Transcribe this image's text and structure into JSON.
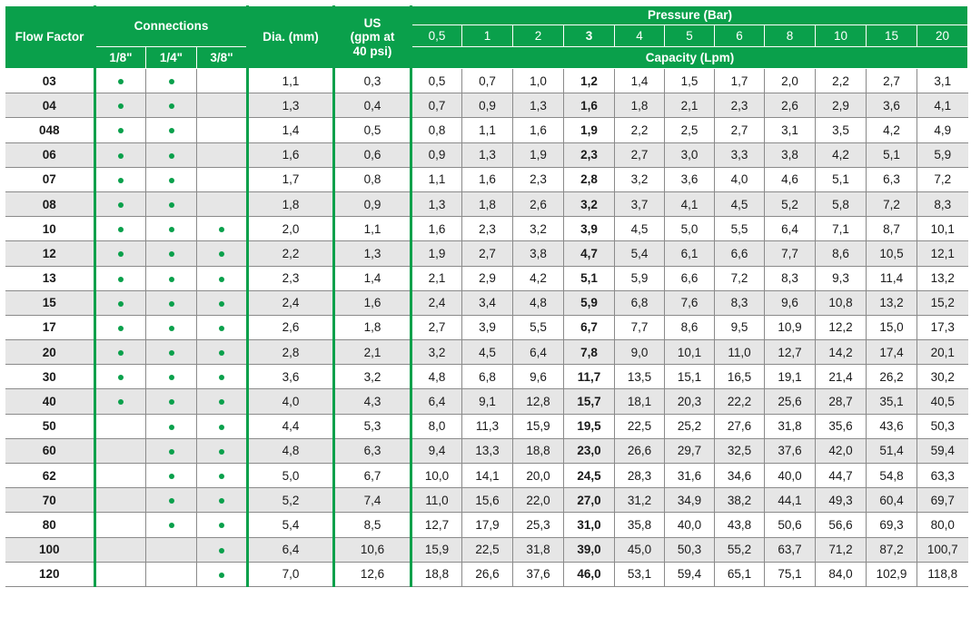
{
  "header": {
    "flow_factor": "Flow Factor",
    "connections": "Connections",
    "connection_sizes": [
      "1/8\"",
      "1/4\"",
      "3/8\""
    ],
    "dia": "Dia. (mm)",
    "us": "US (gpm at 40 psi)",
    "pressure": "Pressure (Bar)",
    "pressures": [
      "0,5",
      "1",
      "2",
      "3",
      "4",
      "5",
      "6",
      "8",
      "10",
      "15",
      "20"
    ],
    "capacity": "Capacity (Lpm)"
  },
  "colors": {
    "accent": "#0aa04b",
    "stripe": "#e6e6e6"
  },
  "rows": [
    {
      "ff": "03",
      "c": [
        1,
        1,
        0
      ],
      "dia": "1,1",
      "us": "0,3",
      "cap": [
        "0,5",
        "0,7",
        "1,0",
        "1,2",
        "1,4",
        "1,5",
        "1,7",
        "2,0",
        "2,2",
        "2,7",
        "3,1"
      ]
    },
    {
      "ff": "04",
      "c": [
        1,
        1,
        0
      ],
      "dia": "1,3",
      "us": "0,4",
      "cap": [
        "0,7",
        "0,9",
        "1,3",
        "1,6",
        "1,8",
        "2,1",
        "2,3",
        "2,6",
        "2,9",
        "3,6",
        "4,1"
      ]
    },
    {
      "ff": "048",
      "c": [
        1,
        1,
        0
      ],
      "dia": "1,4",
      "us": "0,5",
      "cap": [
        "0,8",
        "1,1",
        "1,6",
        "1,9",
        "2,2",
        "2,5",
        "2,7",
        "3,1",
        "3,5",
        "4,2",
        "4,9"
      ]
    },
    {
      "ff": "06",
      "c": [
        1,
        1,
        0
      ],
      "dia": "1,6",
      "us": "0,6",
      "cap": [
        "0,9",
        "1,3",
        "1,9",
        "2,3",
        "2,7",
        "3,0",
        "3,3",
        "3,8",
        "4,2",
        "5,1",
        "5,9"
      ]
    },
    {
      "ff": "07",
      "c": [
        1,
        1,
        0
      ],
      "dia": "1,7",
      "us": "0,8",
      "cap": [
        "1,1",
        "1,6",
        "2,3",
        "2,8",
        "3,2",
        "3,6",
        "4,0",
        "4,6",
        "5,1",
        "6,3",
        "7,2"
      ]
    },
    {
      "ff": "08",
      "c": [
        1,
        1,
        0
      ],
      "dia": "1,8",
      "us": "0,9",
      "cap": [
        "1,3",
        "1,8",
        "2,6",
        "3,2",
        "3,7",
        "4,1",
        "4,5",
        "5,2",
        "5,8",
        "7,2",
        "8,3"
      ]
    },
    {
      "ff": "10",
      "c": [
        1,
        1,
        1
      ],
      "dia": "2,0",
      "us": "1,1",
      "cap": [
        "1,6",
        "2,3",
        "3,2",
        "3,9",
        "4,5",
        "5,0",
        "5,5",
        "6,4",
        "7,1",
        "8,7",
        "10,1"
      ]
    },
    {
      "ff": "12",
      "c": [
        1,
        1,
        1
      ],
      "dia": "2,2",
      "us": "1,3",
      "cap": [
        "1,9",
        "2,7",
        "3,8",
        "4,7",
        "5,4",
        "6,1",
        "6,6",
        "7,7",
        "8,6",
        "10,5",
        "12,1"
      ]
    },
    {
      "ff": "13",
      "c": [
        1,
        1,
        1
      ],
      "dia": "2,3",
      "us": "1,4",
      "cap": [
        "2,1",
        "2,9",
        "4,2",
        "5,1",
        "5,9",
        "6,6",
        "7,2",
        "8,3",
        "9,3",
        "11,4",
        "13,2"
      ]
    },
    {
      "ff": "15",
      "c": [
        1,
        1,
        1
      ],
      "dia": "2,4",
      "us": "1,6",
      "cap": [
        "2,4",
        "3,4",
        "4,8",
        "5,9",
        "6,8",
        "7,6",
        "8,3",
        "9,6",
        "10,8",
        "13,2",
        "15,2"
      ]
    },
    {
      "ff": "17",
      "c": [
        1,
        1,
        1
      ],
      "dia": "2,6",
      "us": "1,8",
      "cap": [
        "2,7",
        "3,9",
        "5,5",
        "6,7",
        "7,7",
        "8,6",
        "9,5",
        "10,9",
        "12,2",
        "15,0",
        "17,3"
      ]
    },
    {
      "ff": "20",
      "c": [
        1,
        1,
        1
      ],
      "dia": "2,8",
      "us": "2,1",
      "cap": [
        "3,2",
        "4,5",
        "6,4",
        "7,8",
        "9,0",
        "10,1",
        "11,0",
        "12,7",
        "14,2",
        "17,4",
        "20,1"
      ]
    },
    {
      "ff": "30",
      "c": [
        1,
        1,
        1
      ],
      "dia": "3,6",
      "us": "3,2",
      "cap": [
        "4,8",
        "6,8",
        "9,6",
        "11,7",
        "13,5",
        "15,1",
        "16,5",
        "19,1",
        "21,4",
        "26,2",
        "30,2"
      ]
    },
    {
      "ff": "40",
      "c": [
        1,
        1,
        1
      ],
      "dia": "4,0",
      "us": "4,3",
      "cap": [
        "6,4",
        "9,1",
        "12,8",
        "15,7",
        "18,1",
        "20,3",
        "22,2",
        "25,6",
        "28,7",
        "35,1",
        "40,5"
      ]
    },
    {
      "ff": "50",
      "c": [
        0,
        1,
        1
      ],
      "dia": "4,4",
      "us": "5,3",
      "cap": [
        "8,0",
        "11,3",
        "15,9",
        "19,5",
        "22,5",
        "25,2",
        "27,6",
        "31,8",
        "35,6",
        "43,6",
        "50,3"
      ]
    },
    {
      "ff": "60",
      "c": [
        0,
        1,
        1
      ],
      "dia": "4,8",
      "us": "6,3",
      "cap": [
        "9,4",
        "13,3",
        "18,8",
        "23,0",
        "26,6",
        "29,7",
        "32,5",
        "37,6",
        "42,0",
        "51,4",
        "59,4"
      ]
    },
    {
      "ff": "62",
      "c": [
        0,
        1,
        1
      ],
      "dia": "5,0",
      "us": "6,7",
      "cap": [
        "10,0",
        "14,1",
        "20,0",
        "24,5",
        "28,3",
        "31,6",
        "34,6",
        "40,0",
        "44,7",
        "54,8",
        "63,3"
      ]
    },
    {
      "ff": "70",
      "c": [
        0,
        1,
        1
      ],
      "dia": "5,2",
      "us": "7,4",
      "cap": [
        "11,0",
        "15,6",
        "22,0",
        "27,0",
        "31,2",
        "34,9",
        "38,2",
        "44,1",
        "49,3",
        "60,4",
        "69,7"
      ]
    },
    {
      "ff": "80",
      "c": [
        0,
        1,
        1
      ],
      "dia": "5,4",
      "us": "8,5",
      "cap": [
        "12,7",
        "17,9",
        "25,3",
        "31,0",
        "35,8",
        "40,0",
        "43,8",
        "50,6",
        "56,6",
        "69,3",
        "80,0"
      ]
    },
    {
      "ff": "100",
      "c": [
        0,
        0,
        1
      ],
      "dia": "6,4",
      "us": "10,6",
      "cap": [
        "15,9",
        "22,5",
        "31,8",
        "39,0",
        "45,0",
        "50,3",
        "55,2",
        "63,7",
        "71,2",
        "87,2",
        "100,7"
      ]
    },
    {
      "ff": "120",
      "c": [
        0,
        0,
        1
      ],
      "dia": "7,0",
      "us": "12,6",
      "cap": [
        "18,8",
        "26,6",
        "37,6",
        "46,0",
        "53,1",
        "59,4",
        "65,1",
        "75,1",
        "84,0",
        "102,9",
        "118,8"
      ]
    }
  ]
}
